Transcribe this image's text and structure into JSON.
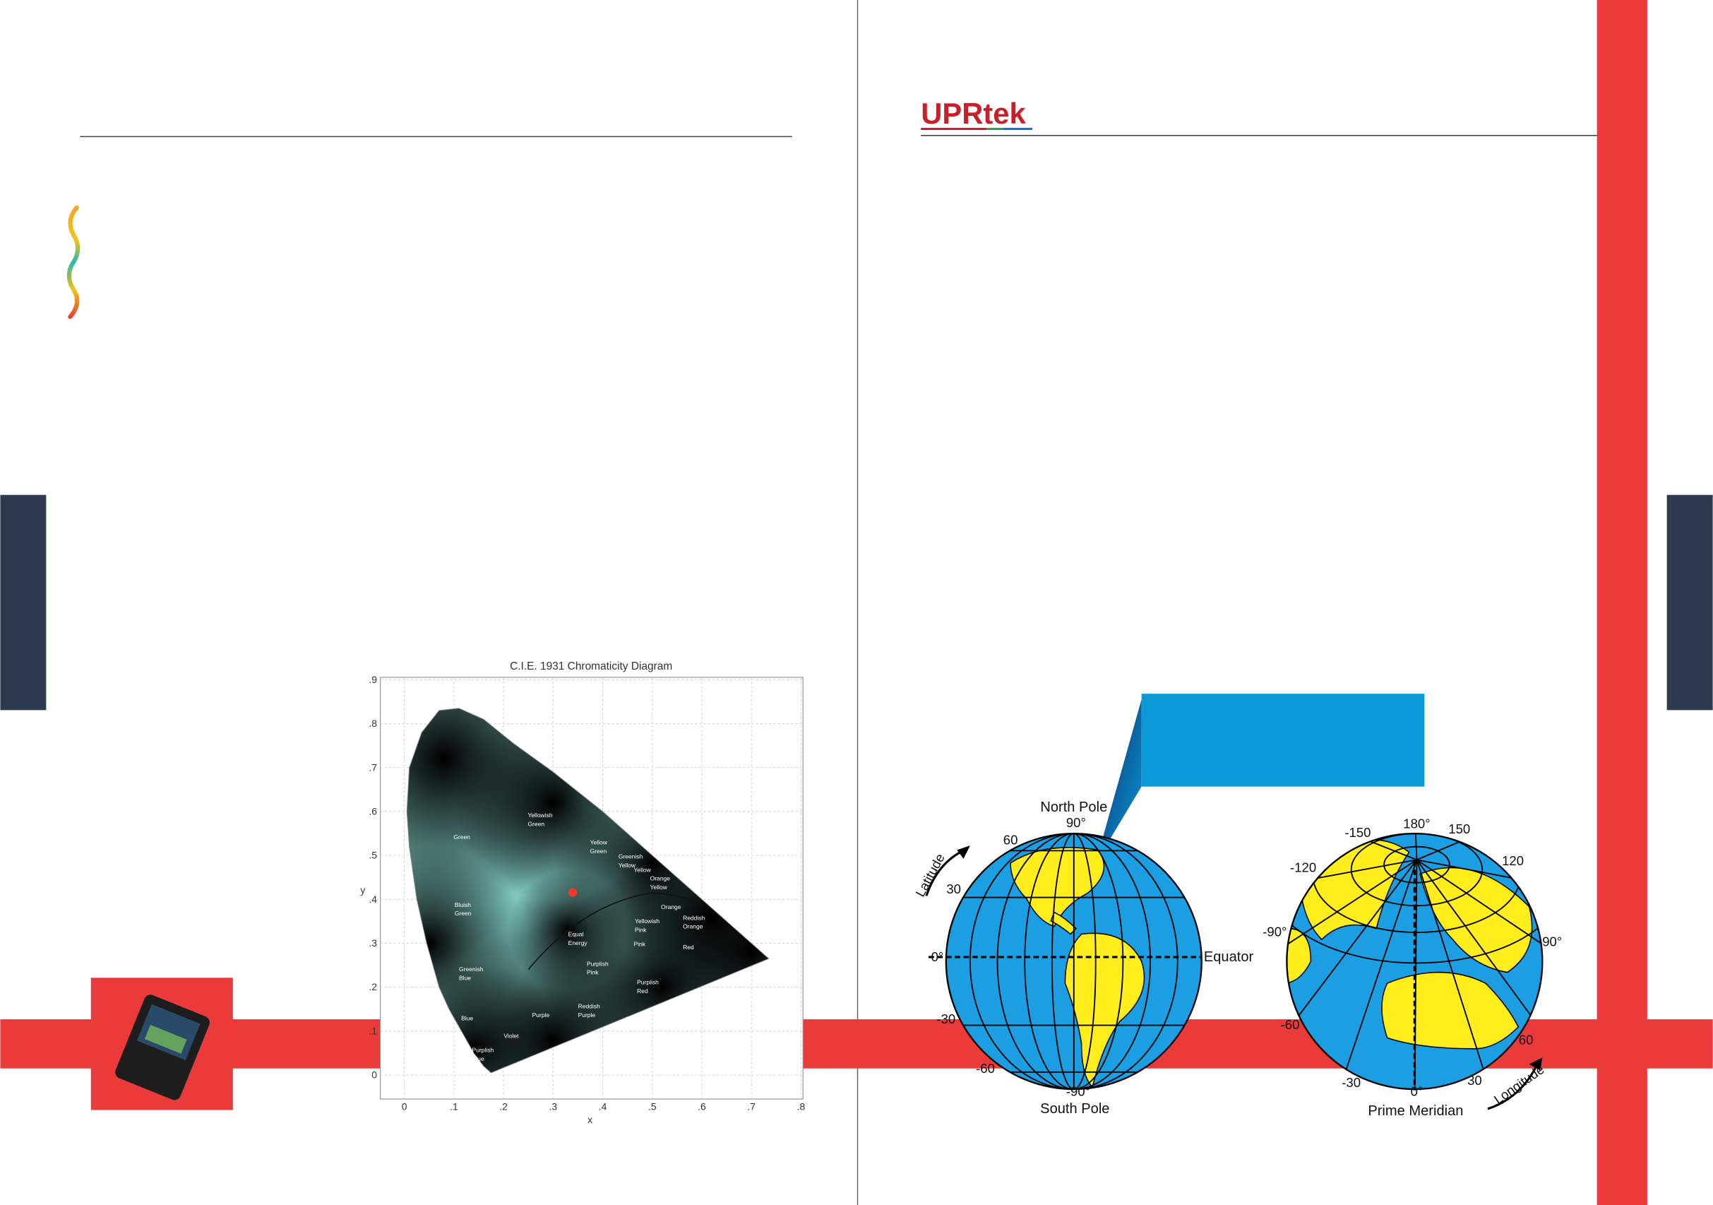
{
  "left_page": {
    "cie_diagram": {
      "title": "C.I.E. 1931 Chromaticity Diagram",
      "x_label": "x",
      "y_label": "y",
      "x_ticks": [
        "0",
        ".1",
        ".2",
        ".3",
        ".4",
        ".5",
        ".6",
        ".7",
        ".8"
      ],
      "y_ticks": [
        "0",
        ".1",
        ".2",
        ".3",
        ".4",
        ".5",
        ".6",
        ".7",
        ".8",
        ".9"
      ],
      "regions": [
        [
          "Green"
        ],
        [
          "Yellowish",
          "Green"
        ],
        [
          "Yellow",
          "Green"
        ],
        [
          "Greenish",
          "Yellow"
        ],
        [
          "Yellow"
        ],
        [
          "Orange",
          "Yellow"
        ],
        [
          "Orange"
        ],
        [
          "Reddish",
          "Orange"
        ],
        [
          "Red"
        ],
        [
          "Bluish",
          "Green"
        ],
        [
          "Equal",
          "Energy"
        ],
        [
          "Yellowish",
          "Pink"
        ],
        [
          "Pink"
        ],
        [
          "Purplish",
          "Pink"
        ],
        [
          "Purplish",
          "Red"
        ],
        [
          "Reddish",
          "Purple"
        ],
        [
          "Purple"
        ],
        [
          "Greenish",
          "Blue"
        ],
        [
          "Blue"
        ],
        [
          "Violet"
        ],
        [
          "Purplish",
          "Blue"
        ]
      ]
    }
  },
  "right_page": {
    "logo": "UPRtek",
    "latitude_globe": {
      "labels": [
        "North Pole",
        "90°",
        "60",
        "30",
        "0°",
        "-30",
        "-60",
        "-90°",
        "South Pole",
        "Equator",
        "Latitude"
      ]
    },
    "longitude_globe": {
      "labels": [
        "180°",
        "150",
        "-150",
        "120",
        "-120",
        "90°",
        "-90°",
        "60",
        "-60",
        "30",
        "-30",
        "0°",
        "Prime Meridian",
        "Longitude"
      ]
    }
  }
}
